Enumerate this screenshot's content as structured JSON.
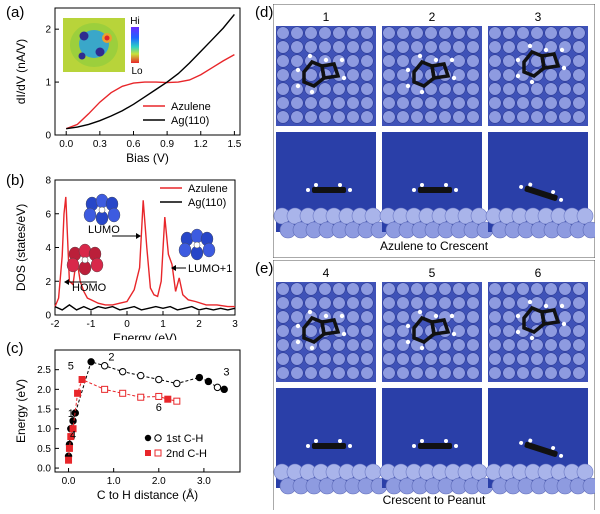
{
  "panels": {
    "a": {
      "label": "(a)"
    },
    "b": {
      "label": "(b)"
    },
    "c": {
      "label": "(c)"
    },
    "d": {
      "label": "(d)",
      "frame_numbers": [
        "1",
        "2",
        "3"
      ],
      "caption": "Azulene to Crescent"
    },
    "e": {
      "label": "(e)",
      "frame_numbers": [
        "4",
        "5",
        "6"
      ],
      "caption": "Crescent to Peanut"
    }
  },
  "colors": {
    "azulene": "#e8262a",
    "ag": "#000000",
    "surface_blue": "#2a3fa8",
    "first_ch": "#000000",
    "second_ch": "#e8262a"
  },
  "chart_data": [
    {
      "id": "a",
      "type": "line",
      "xlabel": "Bias (V)",
      "ylabel": "dI/dV (nA/V)",
      "xlim": [
        -0.1,
        1.55
      ],
      "ylim": [
        0,
        2.4
      ],
      "xticks": [
        "0.0",
        "0.3",
        "0.6",
        "0.9",
        "1.2",
        "1.5"
      ],
      "yticks": [
        "0",
        "1",
        "2"
      ],
      "legend_position": "lower-right",
      "inset_colorbar": {
        "high": "Hi",
        "low": "Lo"
      },
      "series": [
        {
          "name": "Azulene",
          "color": "#e8262a",
          "x": [
            0.0,
            0.1,
            0.2,
            0.3,
            0.4,
            0.5,
            0.6,
            0.7,
            0.8,
            0.9,
            1.0,
            1.1,
            1.2,
            1.3,
            1.4,
            1.5
          ],
          "y": [
            0.12,
            0.2,
            0.4,
            0.62,
            0.8,
            0.92,
            0.98,
            1.0,
            1.0,
            0.99,
            1.0,
            1.04,
            1.14,
            1.27,
            1.4,
            1.52
          ]
        },
        {
          "name": "Ag(110)",
          "color": "#000000",
          "x": [
            0.0,
            0.1,
            0.2,
            0.3,
            0.4,
            0.5,
            0.6,
            0.7,
            0.8,
            0.9,
            1.0,
            1.1,
            1.2,
            1.3,
            1.4,
            1.5
          ],
          "y": [
            0.12,
            0.15,
            0.2,
            0.27,
            0.36,
            0.46,
            0.58,
            0.72,
            0.86,
            1.0,
            1.16,
            1.36,
            1.58,
            1.8,
            2.02,
            2.28
          ]
        }
      ]
    },
    {
      "id": "b",
      "type": "line",
      "xlabel": "Energy (eV)",
      "ylabel": "DOS (states/eV)",
      "xlim": [
        -2,
        3
      ],
      "ylim": [
        0,
        8
      ],
      "xticks": [
        "-2",
        "-1",
        "0",
        "1",
        "2",
        "3"
      ],
      "yticks": [
        "0",
        "2",
        "4",
        "6",
        "8"
      ],
      "legend_position": "top-right",
      "annotations": [
        "LUMO",
        "HOMO",
        "LUMO+1"
      ],
      "series": [
        {
          "name": "Azulene",
          "color": "#e8262a",
          "x": [
            -2.0,
            -1.9,
            -1.8,
            -1.75,
            -1.7,
            -1.65,
            -1.6,
            -1.5,
            -1.4,
            -1.3,
            -1.2,
            -1.1,
            -1.0,
            -0.8,
            -0.6,
            -0.4,
            -0.2,
            0.0,
            0.2,
            0.35,
            0.45,
            0.55,
            0.65,
            0.75,
            0.85,
            0.95,
            1.05,
            1.15,
            1.25,
            1.35,
            1.45,
            1.55,
            1.7,
            1.9,
            2.2,
            2.5,
            2.8,
            3.0
          ],
          "y": [
            0.5,
            1.0,
            3.5,
            6.0,
            7.0,
            4.5,
            2.0,
            1.8,
            3.4,
            2.0,
            1.4,
            1.0,
            0.9,
            0.7,
            0.6,
            0.6,
            0.7,
            0.8,
            1.5,
            2.8,
            6.8,
            4.0,
            1.6,
            1.2,
            1.1,
            2.0,
            5.8,
            3.6,
            3.0,
            1.4,
            2.2,
            1.2,
            0.9,
            0.8,
            0.6,
            0.6,
            0.5,
            0.5
          ]
        },
        {
          "name": "Ag(110)",
          "color": "#000000",
          "x": [
            -2.0,
            -1.8,
            -1.6,
            -1.4,
            -1.2,
            -1.0,
            -0.8,
            -0.6,
            -0.4,
            -0.2,
            0.0,
            0.2,
            0.4,
            0.6,
            0.8,
            1.0,
            1.2,
            1.4,
            1.6,
            1.8,
            2.0,
            2.2,
            2.4,
            2.6,
            2.8,
            3.0
          ],
          "y": [
            0.5,
            0.3,
            0.6,
            0.3,
            0.5,
            0.3,
            0.5,
            0.4,
            0.5,
            0.3,
            0.4,
            0.5,
            0.3,
            0.4,
            0.5,
            0.4,
            0.5,
            0.3,
            0.4,
            0.5,
            0.3,
            0.4,
            0.3,
            0.4,
            0.3,
            0.4
          ]
        }
      ]
    },
    {
      "id": "c",
      "type": "scatter",
      "xlabel": "C to H distance (Å)",
      "ylabel": "Energy (eV)",
      "xlim": [
        -0.3,
        3.8
      ],
      "ylim": [
        -0.1,
        3.0
      ],
      "xticks": [
        "0.0",
        "1.0",
        "2.0",
        "3.0"
      ],
      "yticks": [
        "0.0",
        "0.5",
        "1.0",
        "1.5",
        "2.0",
        "2.5"
      ],
      "legend_position": "lower-right",
      "point_labels": [
        {
          "text": "1",
          "x": 0.05,
          "y": 1.3
        },
        {
          "text": "2",
          "x": 0.95,
          "y": 2.73
        },
        {
          "text": "3",
          "x": 3.5,
          "y": 2.35
        },
        {
          "text": "4",
          "x": 0.1,
          "y": 0.75
        },
        {
          "text": "5",
          "x": 0.05,
          "y": 2.5
        },
        {
          "text": "6",
          "x": 2.0,
          "y": 1.45
        }
      ],
      "series": [
        {
          "name": "1st C-H",
          "color": "#000000",
          "x": [
            0.0,
            0.02,
            0.05,
            0.1,
            0.15,
            0.5,
            0.8,
            1.2,
            1.6,
            2.0,
            2.4,
            2.9,
            3.1,
            3.3,
            3.45
          ],
          "y": [
            0.3,
            0.6,
            1.0,
            1.2,
            1.4,
            2.7,
            2.6,
            2.45,
            2.35,
            2.25,
            2.15,
            2.3,
            2.2,
            2.05,
            2.0
          ],
          "filled": [
            true,
            true,
            true,
            true,
            true,
            true,
            false,
            false,
            false,
            false,
            false,
            true,
            true,
            false,
            true
          ]
        },
        {
          "name": "2nd C-H",
          "color": "#e8262a",
          "x": [
            0.0,
            0.02,
            0.05,
            0.1,
            0.2,
            0.3,
            0.8,
            1.2,
            1.6,
            2.0,
            2.2,
            2.4
          ],
          "y": [
            0.2,
            0.5,
            0.8,
            1.0,
            1.9,
            2.25,
            2.0,
            1.9,
            1.8,
            1.82,
            1.75,
            1.7
          ],
          "filled": [
            true,
            true,
            true,
            true,
            true,
            true,
            false,
            false,
            false,
            false,
            true,
            false
          ]
        }
      ]
    }
  ]
}
